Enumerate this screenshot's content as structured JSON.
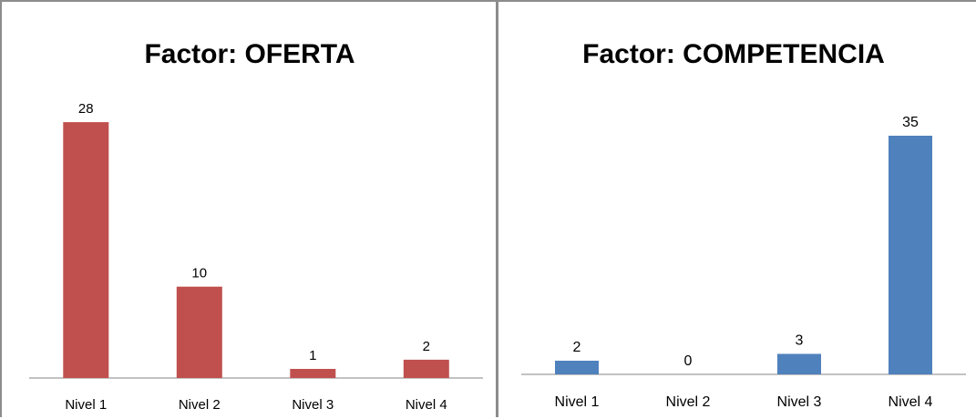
{
  "chart_data": [
    {
      "type": "bar",
      "title": "Factor: OFERTA",
      "categories": [
        "Nivel 1",
        "Nivel 2",
        "Nivel 3",
        "Nivel 4"
      ],
      "values": [
        28,
        10,
        1,
        2
      ],
      "value_labels": [
        "28",
        "10",
        "1",
        "2"
      ],
      "ylim": [
        0,
        30
      ],
      "color": "#C0504D",
      "grid": false,
      "legend": "none"
    },
    {
      "type": "bar",
      "title": "Factor: COMPETENCIA",
      "categories": [
        "Nivel 1",
        "Nivel 2",
        "Nivel 3",
        "Nivel 4"
      ],
      "values": [
        2,
        0,
        3,
        35
      ],
      "value_labels": [
        "2",
        "0",
        "3",
        "35"
      ],
      "ylim": [
        0,
        37
      ],
      "color": "#4F81BD",
      "grid": false,
      "legend": "none"
    }
  ]
}
